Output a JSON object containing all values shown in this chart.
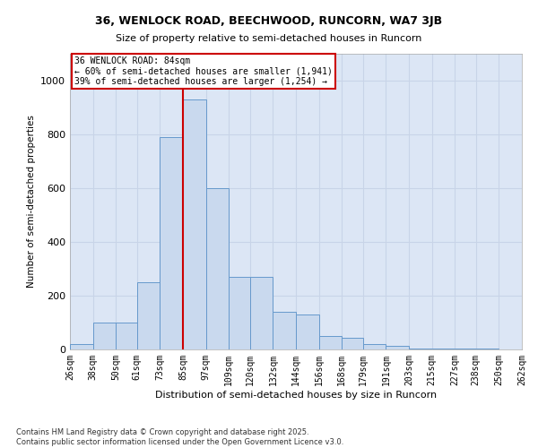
{
  "title1": "36, WENLOCK ROAD, BEECHWOOD, RUNCORN, WA7 3JB",
  "title2": "Size of property relative to semi-detached houses in Runcorn",
  "xlabel": "Distribution of semi-detached houses by size in Runcorn",
  "ylabel": "Number of semi-detached properties",
  "bin_labels": [
    "26sqm",
    "38sqm",
    "50sqm",
    "61sqm",
    "73sqm",
    "85sqm",
    "97sqm",
    "109sqm",
    "120sqm",
    "132sqm",
    "144sqm",
    "156sqm",
    "168sqm",
    "179sqm",
    "191sqm",
    "203sqm",
    "215sqm",
    "227sqm",
    "238sqm",
    "250sqm",
    "262sqm"
  ],
  "bar_heights": [
    20,
    100,
    100,
    250,
    790,
    930,
    600,
    270,
    270,
    140,
    130,
    50,
    45,
    20,
    15,
    5,
    5,
    2,
    2,
    0,
    2
  ],
  "bar_color": "#c9d9ee",
  "bar_edge_color": "#6699cc",
  "grid_color": "#c8d4e8",
  "background_color": "#dce6f5",
  "reference_line_x_label": "85sqm",
  "annotation_title": "36 WENLOCK ROAD: 84sqm",
  "annotation_line1": "← 60% of semi-detached houses are smaller (1,941)",
  "annotation_line2": "39% of semi-detached houses are larger (1,254) →",
  "annotation_box_color": "#cc0000",
  "ylim": [
    0,
    1100
  ],
  "yticks": [
    0,
    200,
    400,
    600,
    800,
    1000
  ],
  "footnote1": "Contains HM Land Registry data © Crown copyright and database right 2025.",
  "footnote2": "Contains public sector information licensed under the Open Government Licence v3.0."
}
